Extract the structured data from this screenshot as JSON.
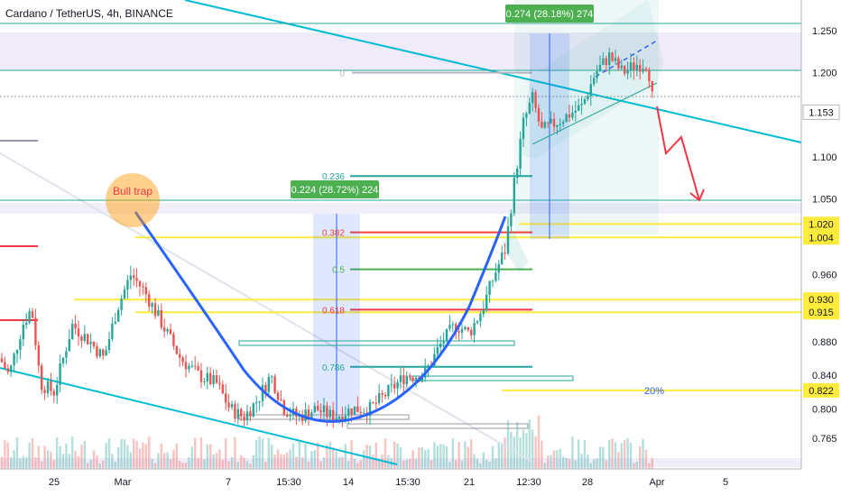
{
  "header": {
    "title": "Cardano / TetherUS, 4h, BINANCE"
  },
  "chart_data": {
    "type": "candlestick",
    "symbol": "Cardano / TetherUS",
    "interval": "4h",
    "exchange": "BINANCE",
    "x_ticks": [
      "25",
      "Mar",
      "7",
      "15:30",
      "14",
      "15:30",
      "21",
      "12:30",
      "28",
      "Apr",
      "5"
    ],
    "y_ticks": [
      "1.250",
      "1.200",
      "1.100",
      "1.050",
      "0.960",
      "0.880",
      "0.840",
      "0.800",
      "0.765"
    ],
    "ylim": [
      0.74,
      1.28
    ],
    "current_price": "1.153",
    "price_tags": [
      {
        "label": "1.020",
        "value": 1.02,
        "color": "#ffeb3b"
      },
      {
        "label": "1.004",
        "value": 1.004,
        "color": "#ffeb3b"
      },
      {
        "label": "0.930",
        "value": 0.93,
        "color": "#ffeb3b"
      },
      {
        "label": "0.915",
        "value": 0.915,
        "color": "#ffeb3b"
      },
      {
        "label": "0.822",
        "value": 0.822,
        "color": "#ffeb3b"
      }
    ],
    "fib_levels": [
      {
        "label": "0",
        "value": 1.2,
        "color": "#b2b5be"
      },
      {
        "label": "0.236",
        "value": 1.077,
        "color": "#26a69a"
      },
      {
        "label": "0.382",
        "value": 1.01,
        "color": "#f44336"
      },
      {
        "label": "0.5",
        "value": 0.966,
        "color": "#4caf50"
      },
      {
        "label": "0.618",
        "value": 0.918,
        "color": "#f23645"
      },
      {
        "label": "0.786",
        "value": 0.85,
        "color": "#26a69a"
      }
    ],
    "annotations": [
      {
        "text": "Bull trap",
        "type": "callout"
      },
      {
        "text": "0.224 (28.72%) 224",
        "type": "measure"
      },
      {
        "text": "0.274 (28.18%) 274",
        "type": "measure"
      },
      {
        "text": "20%",
        "type": "label"
      }
    ],
    "colors": {
      "up": "#26a69a",
      "down": "#ef5350",
      "cup": "#2962ff",
      "trend": "#00bcd4",
      "projection": "#f23645"
    }
  }
}
